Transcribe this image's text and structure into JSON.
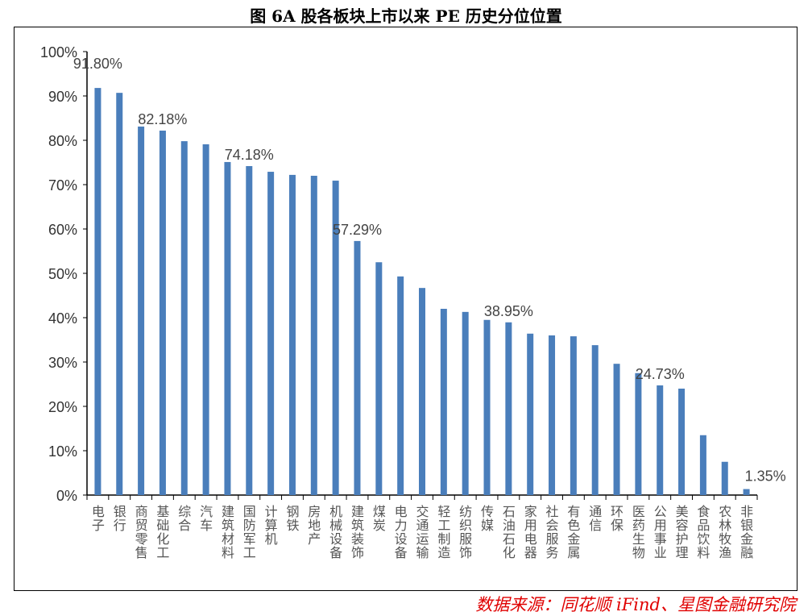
{
  "chart_data": {
    "type": "bar",
    "title": "图 6A 股各板块上市以来 PE 历史分位位置",
    "xlabel": "",
    "ylabel": "",
    "ylim": [
      0,
      100
    ],
    "yticks": [
      "0%",
      "10%",
      "20%",
      "30%",
      "40%",
      "50%",
      "60%",
      "70%",
      "80%",
      "90%",
      "100%"
    ],
    "categories": [
      "电子",
      "银行",
      "商贸零售",
      "基础化工",
      "综合",
      "汽车",
      "建筑材料",
      "国防军工",
      "计算机",
      "钢铁",
      "房地产",
      "机械设备",
      "建筑装饰",
      "煤炭",
      "电力设备",
      "交通运输",
      "轻工制造",
      "纺织服饰",
      "传媒",
      "石油石化",
      "家用电器",
      "社会服务",
      "有色金属",
      "通信",
      "环保",
      "医药生物",
      "公用事业",
      "美容护理",
      "食品饮料",
      "农林牧渔",
      "非银金融"
    ],
    "values": [
      91.8,
      90.7,
      83.1,
      82.18,
      79.8,
      79.1,
      75.1,
      74.18,
      72.9,
      72.2,
      72.0,
      70.9,
      57.29,
      52.5,
      49.3,
      46.7,
      42.0,
      41.3,
      39.5,
      38.95,
      36.4,
      36.0,
      35.8,
      33.8,
      29.6,
      27.5,
      24.73,
      24.0,
      13.5,
      7.5,
      1.35
    ],
    "data_labels": [
      {
        "index": 0,
        "text": "91.80%"
      },
      {
        "index": 3,
        "text": "82.18%"
      },
      {
        "index": 7,
        "text": "74.18%"
      },
      {
        "index": 12,
        "text": "57.29%"
      },
      {
        "index": 19,
        "text": "38.95%"
      },
      {
        "index": 26,
        "text": "24.73%"
      },
      {
        "index": 30,
        "text": "1.35%"
      }
    ],
    "bar_color": "#4a7ebb",
    "grid": false,
    "legend": "none"
  },
  "source": "数据来源：同花顺 iFind、星图金融研究院"
}
